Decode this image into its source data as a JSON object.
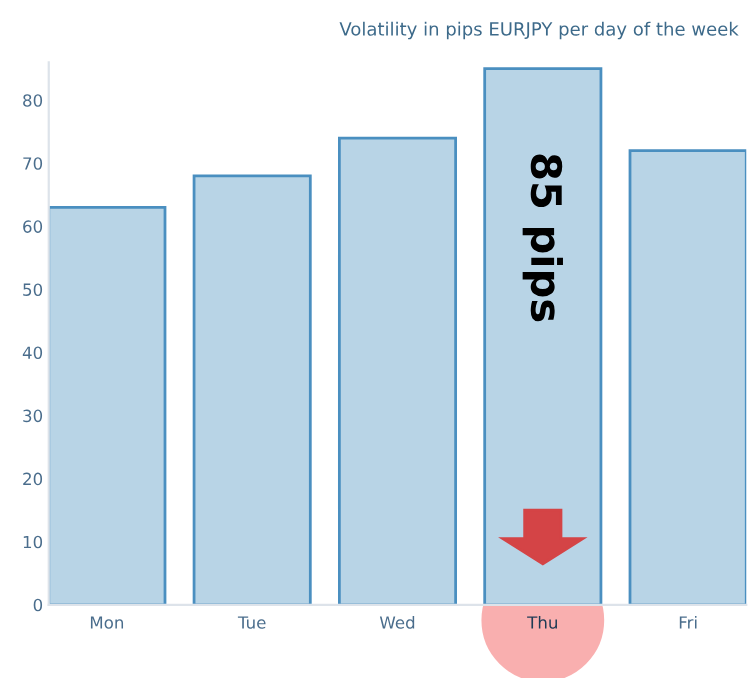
{
  "chart_data": {
    "type": "bar",
    "title": "Volatility in pips EURJPY per day of the week",
    "categories": [
      "Mon",
      "Tue",
      "Wed",
      "Thu",
      "Fri"
    ],
    "values": [
      63,
      68,
      74,
      85,
      72
    ],
    "color": "#b8d4e6",
    "ylim": [
      0,
      86
    ],
    "yticks": [
      0,
      10,
      20,
      30,
      40,
      50,
      60,
      70,
      80
    ],
    "annotations": [
      {
        "text": "85 pips",
        "x": "Thu",
        "y": 85
      }
    ]
  }
}
